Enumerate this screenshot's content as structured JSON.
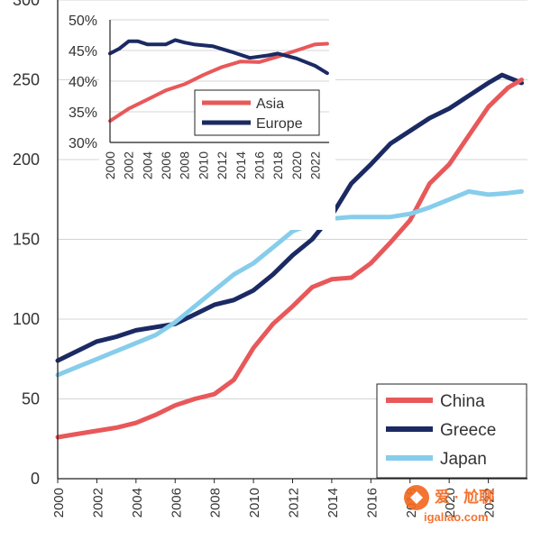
{
  "chart_data": [
    {
      "type": "line",
      "title": "",
      "xlabel": "",
      "ylabel": "",
      "xlim": [
        2000,
        2024
      ],
      "ylim": [
        0,
        300
      ],
      "grid": "horizontal",
      "legend_position": "bottom-right",
      "y_ticks": [
        "0",
        "50",
        "100",
        "150",
        "200",
        "250",
        "300"
      ],
      "x_ticks": [
        "2000",
        "2002",
        "2004",
        "2006",
        "2008",
        "2010",
        "2012",
        "2014",
        "2016",
        "2018",
        "2020",
        "2022"
      ],
      "series": [
        {
          "name": "China",
          "color": "#e8585a",
          "points": [
            [
              2000,
              26
            ],
            [
              2001,
              28
            ],
            [
              2002,
              30
            ],
            [
              2003,
              32
            ],
            [
              2004,
              35
            ],
            [
              2005,
              40
            ],
            [
              2006,
              46
            ],
            [
              2007,
              50
            ],
            [
              2008,
              53
            ],
            [
              2009,
              62
            ],
            [
              2010,
              82
            ],
            [
              2011,
              97
            ],
            [
              2012,
              108
            ],
            [
              2013,
              120
            ],
            [
              2014,
              125
            ],
            [
              2015,
              126
            ],
            [
              2016,
              135
            ],
            [
              2017,
              148
            ],
            [
              2018,
              162
            ],
            [
              2019,
              185
            ],
            [
              2020,
              197
            ],
            [
              2021,
              215
            ],
            [
              2022,
              233
            ],
            [
              2023,
              245
            ],
            [
              2023.7,
              250
            ]
          ]
        },
        {
          "name": "Greece",
          "color": "#1b2a63",
          "points": [
            [
              2000,
              74
            ],
            [
              2001,
              80
            ],
            [
              2002,
              86
            ],
            [
              2003,
              89
            ],
            [
              2004,
              93
            ],
            [
              2005,
              95
            ],
            [
              2006,
              97
            ],
            [
              2007,
              103
            ],
            [
              2008,
              109
            ],
            [
              2009,
              112
            ],
            [
              2010,
              118
            ],
            [
              2011,
              128
            ],
            [
              2012,
              140
            ],
            [
              2013,
              150
            ],
            [
              2014,
              165
            ],
            [
              2015,
              185
            ],
            [
              2016,
              197
            ],
            [
              2017,
              210
            ],
            [
              2018,
              218
            ],
            [
              2019,
              226
            ],
            [
              2020,
              232
            ],
            [
              2021,
              240
            ],
            [
              2022,
              248
            ],
            [
              2022.7,
              253
            ],
            [
              2023.7,
              248
            ]
          ]
        },
        {
          "name": "Japan",
          "color": "#86cdeb",
          "points": [
            [
              2000,
              65
            ],
            [
              2001,
              70
            ],
            [
              2002,
              75
            ],
            [
              2003,
              80
            ],
            [
              2004,
              85
            ],
            [
              2005,
              90
            ],
            [
              2006,
              98
            ],
            [
              2007,
              108
            ],
            [
              2008,
              118
            ],
            [
              2009,
              128
            ],
            [
              2010,
              135
            ],
            [
              2011,
              145
            ],
            [
              2012,
              155
            ],
            [
              2013,
              160
            ],
            [
              2014,
              163
            ],
            [
              2015,
              164
            ],
            [
              2016,
              164
            ],
            [
              2017,
              164
            ],
            [
              2018,
              166
            ],
            [
              2019,
              170
            ],
            [
              2020,
              175
            ],
            [
              2021,
              180
            ],
            [
              2022,
              178
            ],
            [
              2023,
              179
            ],
            [
              2023.7,
              180
            ]
          ]
        }
      ]
    },
    {
      "type": "line",
      "title": "",
      "xlabel": "",
      "ylabel": "",
      "xlim": [
        2000,
        2023.5
      ],
      "ylim": [
        30,
        50
      ],
      "grid": "horizontal",
      "legend_position": "bottom-right",
      "y_ticks": [
        "30%",
        "35%",
        "40%",
        "45%",
        "50%"
      ],
      "x_ticks": [
        "2000",
        "2002",
        "2004",
        "2006",
        "2008",
        "2010",
        "2012",
        "2014",
        "2016",
        "2018",
        "2020",
        "2022"
      ],
      "series": [
        {
          "name": "Asia",
          "color": "#e8585a",
          "points": [
            [
              2000,
              33.5
            ],
            [
              2002,
              35.5
            ],
            [
              2004,
              37
            ],
            [
              2006,
              38.5
            ],
            [
              2008,
              39.5
            ],
            [
              2010,
              41
            ],
            [
              2012,
              42.3
            ],
            [
              2014,
              43.2
            ],
            [
              2016,
              43.1
            ],
            [
              2018,
              44
            ],
            [
              2020,
              45
            ],
            [
              2022,
              46
            ],
            [
              2023.3,
              46.1
            ]
          ]
        },
        {
          "name": "Europe",
          "color": "#1b2a63",
          "points": [
            [
              2000,
              44.5
            ],
            [
              2001,
              45.3
            ],
            [
              2002,
              46.5
            ],
            [
              2003,
              46.5
            ],
            [
              2004,
              46
            ],
            [
              2006,
              46
            ],
            [
              2007,
              46.7
            ],
            [
              2008,
              46.3
            ],
            [
              2009,
              46
            ],
            [
              2011,
              45.7
            ],
            [
              2013,
              44.8
            ],
            [
              2015,
              43.8
            ],
            [
              2017,
              44.2
            ],
            [
              2018,
              44.5
            ],
            [
              2020,
              43.7
            ],
            [
              2022,
              42.5
            ],
            [
              2023.3,
              41.3
            ]
          ]
        }
      ]
    }
  ],
  "watermark": {
    "brand": "爱 · 尬聊",
    "url": "igaliao.com"
  }
}
